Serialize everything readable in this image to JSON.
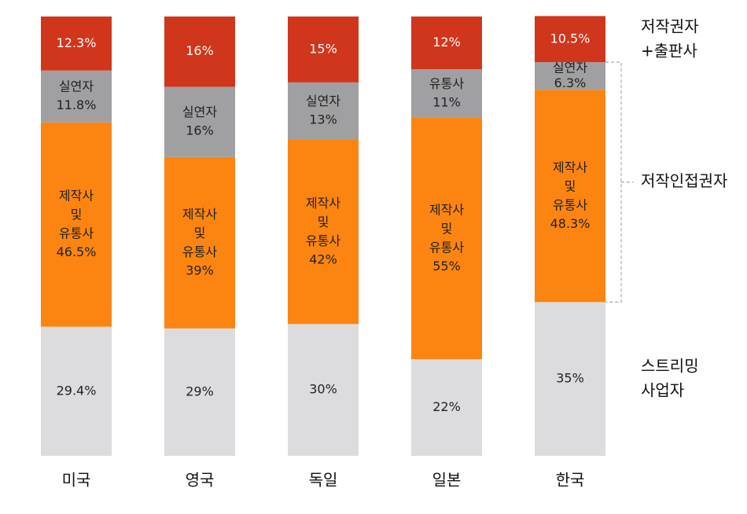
{
  "chart_data": {
    "type": "stacked_bar",
    "categories": [
      "미국",
      "영국",
      "독일",
      "일본",
      "한국"
    ],
    "ylim": [
      0,
      100
    ],
    "series": [
      {
        "name": "스트리밍\n사업자",
        "color": "#dcdcde",
        "text_color": "#222222",
        "values": [
          29.4,
          29,
          30,
          22,
          35
        ],
        "value_labels": [
          "29.4%",
          "29%",
          "30%",
          "22%",
          "35%"
        ]
      },
      {
        "color": "#fb8510",
        "text_color": "#222222",
        "labels": [
          "제작사\n및\n유통사",
          "제작사\n및\n유통사",
          "제작사\n및\n유통사",
          "제작사\n및\n유통사",
          "제작사\n및\n유통사"
        ],
        "values": [
          46.5,
          39,
          42,
          55,
          48.3
        ],
        "value_labels": [
          "46.5%",
          "39%",
          "42%",
          "55%",
          "48.3%"
        ]
      },
      {
        "color": "#a0a0a2",
        "text_color": "#222222",
        "labels": [
          "실연자",
          "실연자",
          "실연자",
          "유통사",
          "실연자"
        ],
        "values": [
          11.8,
          16,
          13,
          11,
          6.3
        ],
        "value_labels": [
          "11.8%",
          "16%",
          "13%",
          "11%",
          "6.3%"
        ]
      },
      {
        "name": "저작권자\n+출판사",
        "color": "#d0361c",
        "text_color": "#ffffff",
        "values": [
          12.3,
          16,
          15,
          12,
          10.5
        ],
        "value_labels": [
          "12.3%",
          "16%",
          "15%",
          "12%",
          "10.5%"
        ]
      }
    ],
    "bracket_label": "저작인접권자"
  }
}
